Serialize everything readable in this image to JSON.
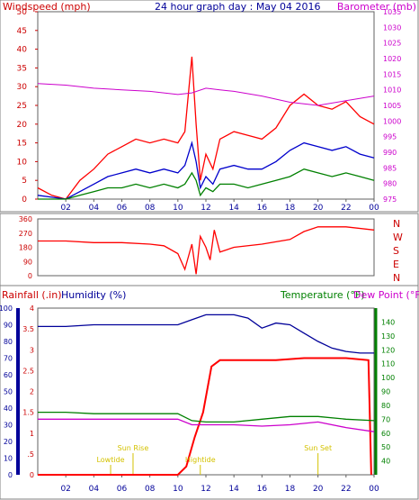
{
  "chart_data": [
    {
      "type": "line",
      "panel": "wind-pressure",
      "title": "24 hour graph day : May 04 2016",
      "y_left_label": "Windspeed (mph)",
      "y_right_label": "Barometer (mb)",
      "ylim_left": [
        0,
        50
      ],
      "ylim_right": [
        975,
        1035
      ],
      "y_left_ticks": [
        0,
        5,
        10,
        15,
        20,
        25,
        30,
        35,
        40,
        45,
        50
      ],
      "y_right_ticks": [
        975,
        980,
        985,
        990,
        995,
        1000,
        1005,
        1010,
        1015,
        1020,
        1025,
        1030,
        1035
      ],
      "x_ticks": [
        "02",
        "04",
        "06",
        "08",
        "10",
        "12",
        "14",
        "16",
        "18",
        "20",
        "22",
        "00"
      ],
      "colors": {
        "gust": "#ff0000",
        "avg": "#0000cc",
        "low": "#008000",
        "barometer": "#cc00cc"
      },
      "series": [
        {
          "key": "gust",
          "x": [
            0,
            1,
            2,
            3,
            4,
            5,
            6,
            7,
            8,
            9,
            10,
            10.5,
            11,
            11.3,
            11.6,
            12,
            12.5,
            13,
            14,
            15,
            16,
            17,
            18,
            19,
            20,
            21,
            22,
            23,
            24
          ],
          "y": [
            3,
            1,
            0,
            5,
            8,
            12,
            14,
            16,
            15,
            16,
            15,
            18,
            38,
            20,
            5,
            12,
            8,
            16,
            18,
            17,
            16,
            19,
            25,
            28,
            25,
            24,
            26,
            22,
            20
          ]
        },
        {
          "key": "avg",
          "x": [
            0,
            1,
            2,
            3,
            4,
            5,
            6,
            7,
            8,
            9,
            10,
            10.5,
            11,
            11.3,
            11.6,
            12,
            12.5,
            13,
            14,
            15,
            16,
            17,
            18,
            19,
            20,
            21,
            22,
            23,
            24
          ],
          "y": [
            1,
            0.5,
            0,
            2,
            4,
            6,
            7,
            8,
            7,
            8,
            7,
            9,
            15,
            10,
            3,
            6,
            4,
            8,
            9,
            8,
            8,
            10,
            13,
            15,
            14,
            13,
            14,
            12,
            11
          ]
        },
        {
          "key": "low",
          "x": [
            0,
            1,
            2,
            3,
            4,
            5,
            6,
            7,
            8,
            9,
            10,
            10.5,
            11,
            11.3,
            11.6,
            12,
            12.5,
            13,
            14,
            15,
            16,
            17,
            18,
            19,
            20,
            21,
            22,
            23,
            24
          ],
          "y": [
            0,
            0,
            0,
            1,
            2,
            3,
            3,
            4,
            3,
            4,
            3,
            4,
            7,
            5,
            1,
            3,
            2,
            4,
            4,
            3,
            4,
            5,
            6,
            8,
            7,
            6,
            7,
            6,
            5
          ]
        },
        {
          "key": "barometer",
          "x": [
            0,
            2,
            4,
            6,
            8,
            10,
            11,
            12,
            13,
            14,
            16,
            18,
            20,
            22,
            24
          ],
          "y": [
            1012,
            1011.5,
            1010.5,
            1010,
            1009.5,
            1008.5,
            1009,
            1010.5,
            1010,
            1009.5,
            1008,
            1006,
            1005,
            1006.5,
            1008
          ]
        }
      ]
    },
    {
      "type": "line",
      "panel": "wind-direction",
      "ylim": [
        0,
        360
      ],
      "y_ticks": [
        0,
        90,
        180,
        270,
        360
      ],
      "compass": [
        "N",
        "W",
        "S",
        "E",
        "N"
      ],
      "x_ticks": [
        "02",
        "04",
        "06",
        "08",
        "10",
        "12",
        "14",
        "16",
        "18",
        "20",
        "22",
        "00"
      ],
      "color": "#ff0000",
      "series": [
        {
          "key": "direction",
          "x": [
            0,
            2,
            4,
            6,
            8,
            9,
            10,
            10.5,
            11,
            11.3,
            11.6,
            12,
            12.3,
            12.6,
            13,
            14,
            16,
            18,
            19,
            20,
            22,
            24
          ],
          "y": [
            220,
            220,
            210,
            210,
            200,
            190,
            140,
            40,
            200,
            10,
            250,
            180,
            100,
            290,
            150,
            180,
            200,
            230,
            280,
            310,
            310,
            290
          ]
        }
      ]
    },
    {
      "type": "line",
      "panel": "rain-humidity-temp",
      "legend": [
        "Rainfall (.in)",
        "Humidity (%)",
        "Temperature (°F)",
        "Dew Point (°F)"
      ],
      "ylim_rain": [
        0,
        4
      ],
      "ylim_humidity": [
        0,
        100
      ],
      "ylim_temp": [
        30,
        150
      ],
      "y_rain_ticks": [
        "0",
        ".5",
        "1",
        "1.5",
        "2",
        "2.5",
        "3",
        "3.5",
        "4"
      ],
      "y_humidity_ticks": [
        0,
        10,
        20,
        30,
        40,
        50,
        60,
        70,
        80,
        90,
        100
      ],
      "y_temp_ticks": [
        40,
        50,
        60,
        70,
        80,
        90,
        100,
        110,
        120,
        130,
        140
      ],
      "x_ticks": [
        "02",
        "04",
        "06",
        "08",
        "10",
        "12",
        "14",
        "16",
        "18",
        "20",
        "22",
        "00"
      ],
      "colors": {
        "rain": "#ff0000",
        "humidity": "#000099",
        "temp": "#008000",
        "dewpoint": "#cc00cc"
      },
      "annotations": [
        {
          "label": "Lowtide",
          "x": 5.2
        },
        {
          "label": "Sun Rise",
          "x": 6.8
        },
        {
          "label": "Hightide",
          "x": 11.6
        },
        {
          "label": "Sun Set",
          "x": 20.0
        }
      ],
      "series": [
        {
          "key": "rain",
          "x": [
            0,
            10,
            10.6,
            11.2,
            11.8,
            12.4,
            13,
            17,
            19,
            22,
            23.6,
            23.8
          ],
          "y": [
            0,
            0,
            0.2,
            0.9,
            1.5,
            2.6,
            2.75,
            2.75,
            2.8,
            2.8,
            2.75,
            0
          ]
        },
        {
          "key": "humidity",
          "x": [
            0,
            2,
            4,
            6,
            8,
            10,
            11,
            12,
            13,
            14,
            15,
            16,
            17,
            18,
            19,
            20,
            21,
            22,
            23,
            24
          ],
          "y": [
            89,
            89,
            90,
            90,
            90,
            90,
            93,
            96,
            96,
            96,
            94,
            88,
            91,
            90,
            85,
            80,
            76,
            74,
            73,
            73
          ]
        },
        {
          "key": "temp",
          "x": [
            0,
            2,
            4,
            6,
            8,
            10,
            11,
            12,
            14,
            16,
            18,
            20,
            22,
            24
          ],
          "y": [
            75,
            75,
            74,
            74,
            74,
            74,
            69,
            68,
            68,
            70,
            72,
            72,
            70,
            69
          ]
        },
        {
          "key": "dewpoint",
          "x": [
            0,
            2,
            4,
            6,
            8,
            10,
            11,
            12,
            14,
            16,
            18,
            20,
            22,
            24
          ],
          "y": [
            70,
            70,
            70,
            70,
            70,
            70,
            66,
            66,
            66,
            65,
            66,
            68,
            64,
            61
          ]
        }
      ]
    }
  ]
}
